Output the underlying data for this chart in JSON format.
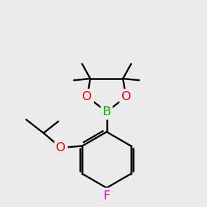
{
  "background_color": "#ebebeb",
  "atom_colors": {
    "B": "#00bb00",
    "O": "#ff0000",
    "F": "#cc00cc",
    "C": "#000000"
  },
  "bond_color": "#000000",
  "bond_width": 1.8,
  "font_size_atom": 13,
  "figsize": [
    3.0,
    3.0
  ],
  "dpi": 100
}
